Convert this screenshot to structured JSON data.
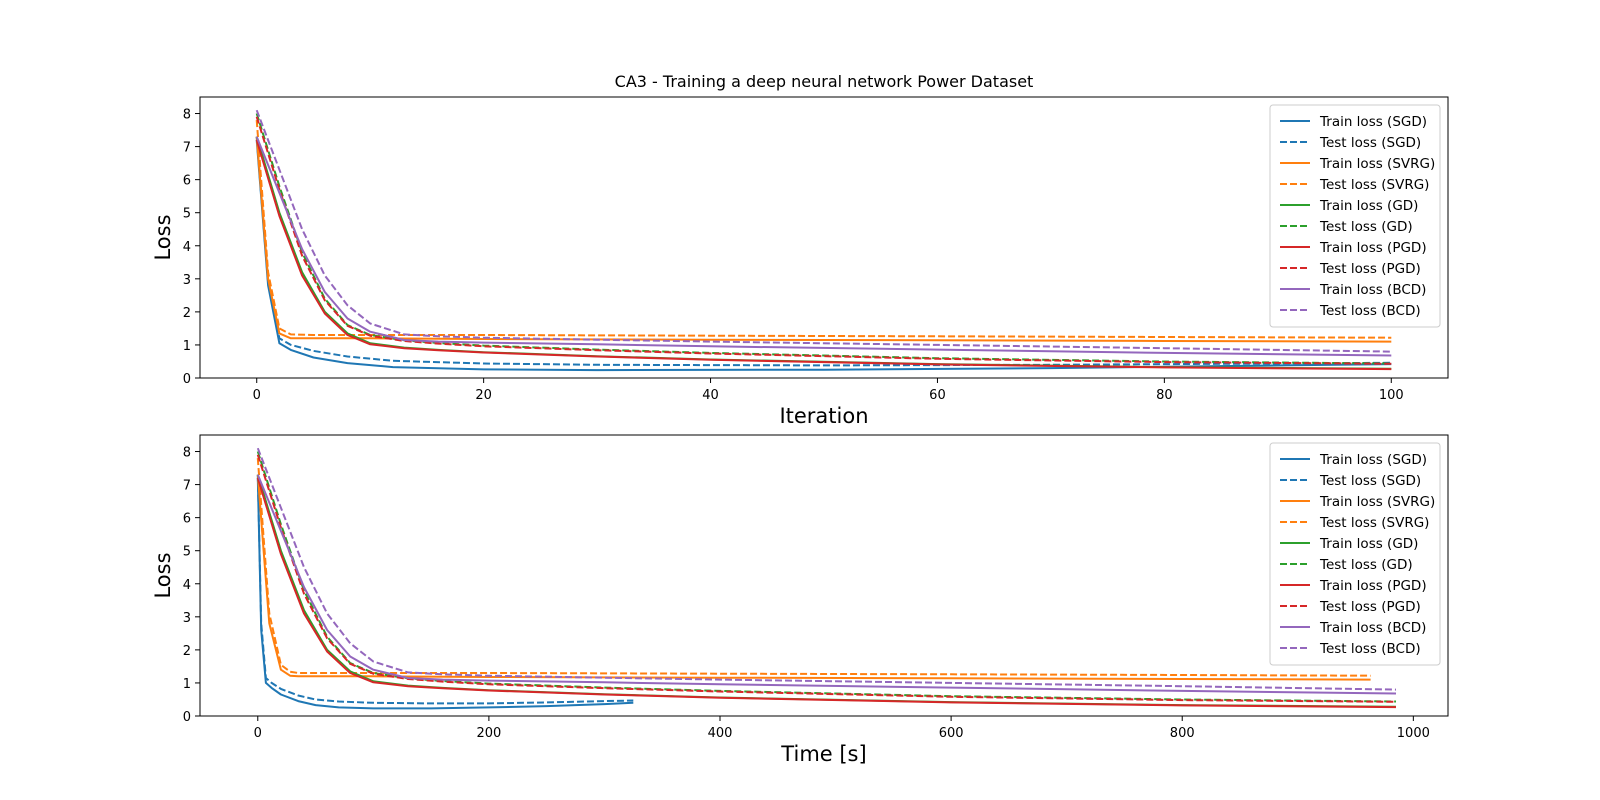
{
  "chart_data": [
    {
      "type": "line",
      "title": "CA3 - Training a deep neural network Power Dataset",
      "xlabel": "Iteration",
      "ylabel": "Loss",
      "xlim": [
        -5,
        105
      ],
      "ylim": [
        0,
        8.5
      ],
      "xticks": [
        0,
        20,
        40,
        60,
        80,
        100
      ],
      "yticks": [
        0,
        1,
        2,
        3,
        4,
        5,
        6,
        7,
        8
      ],
      "grid": false,
      "legend_position": "top-right",
      "series": [
        {
          "name": "Train loss (SGD)",
          "color": "#1f77b4",
          "dash": "solid",
          "x": [
            0,
            1,
            2,
            3,
            5,
            8,
            12,
            20,
            30,
            50,
            70,
            100
          ],
          "y": [
            7.2,
            2.8,
            1.05,
            0.85,
            0.62,
            0.45,
            0.33,
            0.26,
            0.24,
            0.25,
            0.3,
            0.42
          ]
        },
        {
          "name": "Test loss (SGD)",
          "color": "#1f77b4",
          "dash": "dashed",
          "x": [
            0,
            1,
            2,
            3,
            5,
            8,
            12,
            20,
            30,
            50,
            70,
            100
          ],
          "y": [
            7.3,
            2.9,
            1.2,
            1.0,
            0.82,
            0.65,
            0.52,
            0.44,
            0.4,
            0.38,
            0.4,
            0.46
          ]
        },
        {
          "name": "Train loss (SVRG)",
          "color": "#ff7f0e",
          "dash": "solid",
          "x": [
            0,
            1,
            2,
            3,
            5,
            10,
            20,
            40,
            60,
            80,
            100
          ],
          "y": [
            7.3,
            3.0,
            1.35,
            1.2,
            1.2,
            1.2,
            1.18,
            1.16,
            1.14,
            1.12,
            1.1
          ]
        },
        {
          "name": "Test loss (SVRG)",
          "color": "#ff7f0e",
          "dash": "dashed",
          "x": [
            0,
            1,
            2,
            3,
            5,
            10,
            20,
            40,
            60,
            80,
            100
          ],
          "y": [
            7.8,
            3.2,
            1.5,
            1.32,
            1.3,
            1.3,
            1.3,
            1.28,
            1.26,
            1.24,
            1.22
          ]
        },
        {
          "name": "Train loss (GD)",
          "color": "#2ca02c",
          "dash": "solid",
          "x": [
            0,
            2,
            4,
            6,
            8,
            10,
            13,
            16,
            20,
            30,
            40,
            60,
            80,
            100
          ],
          "y": [
            7.3,
            5.0,
            3.2,
            2.0,
            1.35,
            1.05,
            0.92,
            0.85,
            0.78,
            0.66,
            0.56,
            0.42,
            0.33,
            0.28
          ]
        },
        {
          "name": "Test loss (GD)",
          "color": "#2ca02c",
          "dash": "dashed",
          "x": [
            0,
            2,
            4,
            6,
            8,
            10,
            13,
            16,
            20,
            30,
            40,
            60,
            80,
            100
          ],
          "y": [
            8.0,
            5.8,
            3.8,
            2.4,
            1.6,
            1.3,
            1.14,
            1.06,
            0.98,
            0.86,
            0.76,
            0.6,
            0.5,
            0.44
          ]
        },
        {
          "name": "Train loss (PGD)",
          "color": "#d62728",
          "dash": "solid",
          "x": [
            0,
            2,
            4,
            6,
            8,
            10,
            13,
            16,
            20,
            30,
            40,
            60,
            80,
            100
          ],
          "y": [
            7.2,
            4.9,
            3.1,
            1.95,
            1.3,
            1.02,
            0.9,
            0.84,
            0.77,
            0.65,
            0.55,
            0.41,
            0.32,
            0.27
          ]
        },
        {
          "name": "Test loss (PGD)",
          "color": "#d62728",
          "dash": "dashed",
          "x": [
            0,
            2,
            4,
            6,
            8,
            10,
            13,
            16,
            20,
            30,
            40,
            60,
            80,
            100
          ],
          "y": [
            7.9,
            5.7,
            3.7,
            2.35,
            1.58,
            1.28,
            1.12,
            1.04,
            0.96,
            0.84,
            0.74,
            0.58,
            0.48,
            0.43
          ]
        },
        {
          "name": "Train loss (BCD)",
          "color": "#9467bd",
          "dash": "solid",
          "x": [
            0,
            2,
            4,
            6,
            8,
            10,
            13,
            16,
            20,
            30,
            40,
            60,
            80,
            100
          ],
          "y": [
            7.3,
            5.6,
            3.9,
            2.6,
            1.8,
            1.4,
            1.15,
            1.1,
            1.07,
            1.02,
            0.96,
            0.86,
            0.76,
            0.68
          ]
        },
        {
          "name": "Test loss (BCD)",
          "color": "#9467bd",
          "dash": "dashed",
          "x": [
            0,
            2,
            4,
            6,
            8,
            10,
            13,
            16,
            20,
            30,
            40,
            60,
            80,
            100
          ],
          "y": [
            8.1,
            6.3,
            4.5,
            3.1,
            2.2,
            1.65,
            1.32,
            1.26,
            1.22,
            1.16,
            1.1,
            1.0,
            0.9,
            0.8
          ]
        }
      ]
    },
    {
      "type": "line",
      "title": "",
      "xlabel": "Time [s]",
      "ylabel": "Loss",
      "xlim": [
        -50,
        1030
      ],
      "ylim": [
        0,
        8.5
      ],
      "xticks": [
        0,
        200,
        400,
        600,
        800,
        1000
      ],
      "yticks": [
        0,
        1,
        2,
        3,
        4,
        5,
        6,
        7,
        8
      ],
      "grid": false,
      "legend_position": "top-right",
      "series": [
        {
          "name": "Train loss (SGD)",
          "color": "#1f77b4",
          "dash": "solid",
          "x": [
            0,
            3,
            7,
            12,
            20,
            35,
            50,
            70,
            100,
            150,
            200,
            250,
            300,
            325
          ],
          "y": [
            7.2,
            2.6,
            1.0,
            0.85,
            0.65,
            0.45,
            0.33,
            0.26,
            0.23,
            0.23,
            0.26,
            0.3,
            0.36,
            0.4
          ]
        },
        {
          "name": "Test loss (SGD)",
          "color": "#1f77b4",
          "dash": "dashed",
          "x": [
            0,
            3,
            7,
            12,
            20,
            35,
            50,
            70,
            100,
            150,
            200,
            250,
            300,
            325
          ],
          "y": [
            7.3,
            2.8,
            1.15,
            1.0,
            0.82,
            0.62,
            0.5,
            0.44,
            0.4,
            0.38,
            0.38,
            0.41,
            0.45,
            0.47
          ]
        },
        {
          "name": "Train loss (SVRG)",
          "color": "#ff7f0e",
          "dash": "solid",
          "x": [
            0,
            5,
            10,
            20,
            28,
            35,
            50,
            100,
            200,
            400,
            600,
            800,
            963
          ],
          "y": [
            7.3,
            5.0,
            2.8,
            1.4,
            1.22,
            1.2,
            1.2,
            1.2,
            1.18,
            1.16,
            1.14,
            1.12,
            1.1
          ]
        },
        {
          "name": "Test loss (SVRG)",
          "color": "#ff7f0e",
          "dash": "dashed",
          "x": [
            0,
            5,
            10,
            20,
            28,
            35,
            50,
            100,
            200,
            400,
            600,
            800,
            963
          ],
          "y": [
            7.8,
            5.4,
            3.1,
            1.55,
            1.34,
            1.3,
            1.3,
            1.3,
            1.3,
            1.28,
            1.26,
            1.24,
            1.22
          ]
        },
        {
          "name": "Train loss (GD)",
          "color": "#2ca02c",
          "dash": "solid",
          "x": [
            0,
            20,
            40,
            60,
            80,
            100,
            130,
            160,
            200,
            300,
            400,
            600,
            800,
            985
          ],
          "y": [
            7.3,
            5.0,
            3.2,
            2.0,
            1.35,
            1.05,
            0.92,
            0.85,
            0.78,
            0.66,
            0.56,
            0.42,
            0.33,
            0.28
          ]
        },
        {
          "name": "Test loss (GD)",
          "color": "#2ca02c",
          "dash": "dashed",
          "x": [
            0,
            20,
            40,
            60,
            80,
            100,
            130,
            160,
            200,
            300,
            400,
            600,
            800,
            985
          ],
          "y": [
            8.0,
            5.8,
            3.8,
            2.4,
            1.6,
            1.3,
            1.14,
            1.06,
            0.98,
            0.86,
            0.76,
            0.6,
            0.5,
            0.44
          ]
        },
        {
          "name": "Train loss (PGD)",
          "color": "#d62728",
          "dash": "solid",
          "x": [
            0,
            20,
            40,
            60,
            80,
            100,
            130,
            160,
            200,
            300,
            400,
            600,
            800,
            985
          ],
          "y": [
            7.2,
            4.9,
            3.1,
            1.95,
            1.3,
            1.02,
            0.9,
            0.84,
            0.77,
            0.65,
            0.55,
            0.41,
            0.32,
            0.27
          ]
        },
        {
          "name": "Test loss (PGD)",
          "color": "#d62728",
          "dash": "dashed",
          "x": [
            0,
            20,
            40,
            60,
            80,
            100,
            130,
            160,
            200,
            300,
            400,
            600,
            800,
            985
          ],
          "y": [
            7.9,
            5.7,
            3.7,
            2.35,
            1.58,
            1.28,
            1.12,
            1.04,
            0.96,
            0.84,
            0.74,
            0.58,
            0.48,
            0.43
          ]
        },
        {
          "name": "Train loss (BCD)",
          "color": "#9467bd",
          "dash": "solid",
          "x": [
            0,
            20,
            40,
            60,
            80,
            100,
            130,
            160,
            200,
            300,
            400,
            600,
            800,
            985
          ],
          "y": [
            7.3,
            5.6,
            3.9,
            2.6,
            1.8,
            1.4,
            1.15,
            1.1,
            1.07,
            1.02,
            0.96,
            0.86,
            0.76,
            0.68
          ]
        },
        {
          "name": "Test loss (BCD)",
          "color": "#9467bd",
          "dash": "dashed",
          "x": [
            0,
            20,
            40,
            60,
            80,
            100,
            130,
            160,
            200,
            300,
            400,
            600,
            800,
            985
          ],
          "y": [
            8.1,
            6.3,
            4.5,
            3.1,
            2.2,
            1.65,
            1.32,
            1.26,
            1.22,
            1.16,
            1.1,
            1.0,
            0.9,
            0.8
          ]
        }
      ]
    }
  ]
}
